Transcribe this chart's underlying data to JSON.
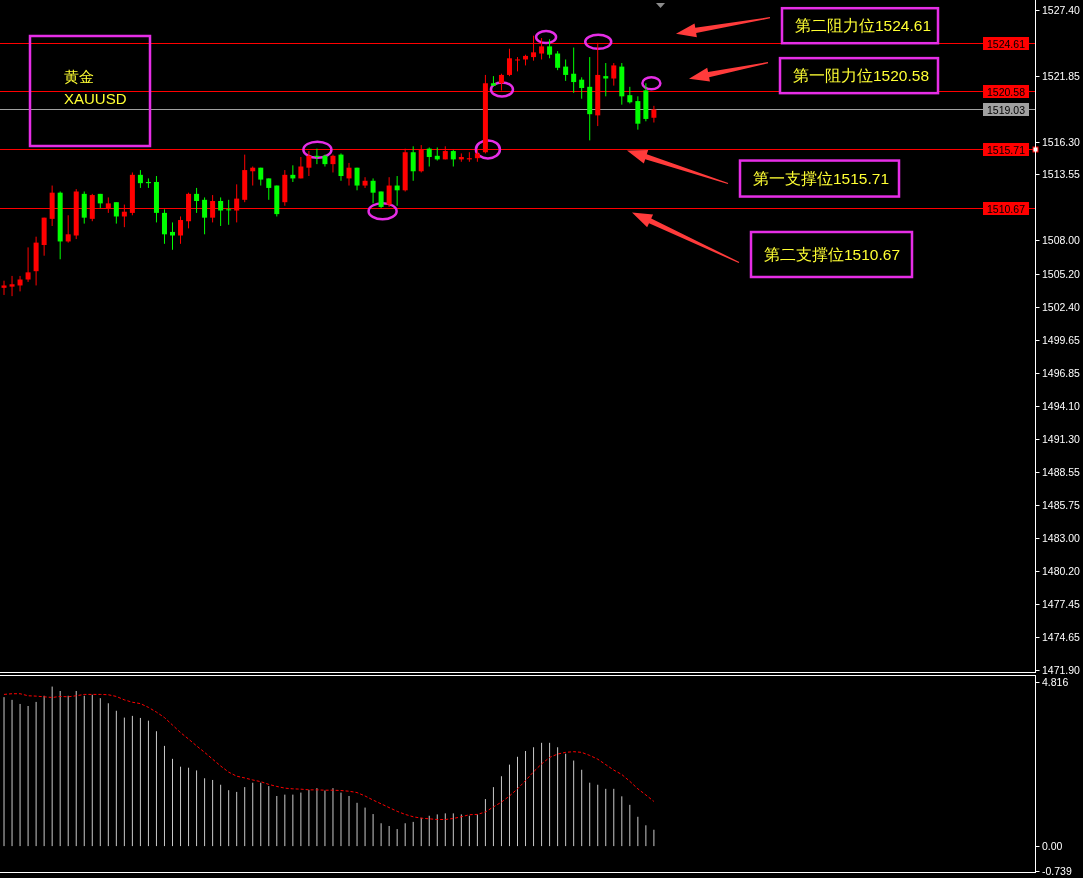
{
  "chart_data": [
    {
      "type": "candlestick",
      "title": "黄金",
      "subtitle": "XAUUSD",
      "categories": [
        null,
        null,
        null,
        null,
        null,
        null,
        null,
        null,
        null,
        null,
        null,
        null,
        null,
        null,
        null,
        null,
        null,
        null,
        null,
        null,
        null,
        null,
        null,
        null,
        null,
        null,
        null,
        null,
        null,
        null,
        null,
        null,
        null,
        null,
        null,
        null,
        null,
        null,
        null,
        null,
        null,
        null,
        null,
        null,
        null,
        null,
        null,
        null,
        null,
        null,
        null,
        null,
        null,
        null,
        null,
        null,
        null,
        null,
        null,
        null,
        null,
        null,
        null,
        null,
        null,
        null,
        null,
        null,
        null,
        null,
        null,
        null,
        null,
        null,
        null,
        null,
        null,
        null,
        null,
        null,
        null,
        null,
        null,
        null,
        null,
        null,
        null,
        null,
        null,
        null,
        null,
        null,
        null,
        null,
        null,
        null,
        null,
        null,
        null,
        null,
        null,
        null,
        null,
        null,
        null,
        null,
        null,
        null,
        null,
        null,
        null,
        null,
        null,
        null,
        null,
        null,
        null,
        null,
        null,
        null,
        null,
        null,
        null,
        null,
        null,
        null,
        null,
        null,
        null
      ],
      "ohlc": [
        [
          1504.0,
          1504.6,
          1503.4,
          1504.2
        ],
        [
          1504.1,
          1505.0,
          1503.3,
          1504.3
        ],
        [
          1504.2,
          1505.0,
          1503.7,
          1504.7
        ],
        [
          1504.7,
          1507.4,
          1504.5,
          1505.3
        ],
        [
          1505.4,
          1508.3,
          1504.2,
          1507.8
        ],
        [
          1507.6,
          1509.9,
          1506.7,
          1509.9
        ],
        [
          1509.8,
          1512.6,
          1509.2,
          1512.0
        ],
        [
          1512.0,
          1512.1,
          1506.4,
          1507.9
        ],
        [
          1507.9,
          1510.1,
          1507.8,
          1508.5
        ],
        [
          1508.4,
          1512.3,
          1508.1,
          1512.1
        ],
        [
          1511.9,
          1512.1,
          1509.4,
          1509.9
        ],
        [
          1509.8,
          1511.9,
          1509.6,
          1511.8
        ],
        [
          1511.9,
          1511.9,
          1510.7,
          1511.1
        ],
        [
          1510.7,
          1511.6,
          1510.3,
          1511.1
        ],
        [
          1511.2,
          1511.2,
          1509.4,
          1510.0
        ],
        [
          1510.0,
          1511.0,
          1509.1,
          1510.4
        ],
        [
          1510.3,
          1513.7,
          1510.1,
          1513.5
        ],
        [
          1513.5,
          1513.9,
          1512.4,
          1512.8
        ],
        [
          1512.9,
          1513.2,
          1512.4,
          1512.8
        ],
        [
          1512.9,
          1513.4,
          1509.5,
          1510.3
        ],
        [
          1510.3,
          1510.6,
          1507.7,
          1508.5
        ],
        [
          1508.7,
          1509.5,
          1507.2,
          1508.4
        ],
        [
          1508.4,
          1510.0,
          1507.7,
          1509.7
        ],
        [
          1509.6,
          1512.0,
          1509.0,
          1511.9
        ],
        [
          1511.9,
          1512.4,
          1510.3,
          1511.3
        ],
        [
          1511.4,
          1511.6,
          1508.5,
          1509.9
        ],
        [
          1509.9,
          1511.8,
          1509.5,
          1511.3
        ],
        [
          1511.3,
          1511.6,
          1509.2,
          1510.5
        ],
        [
          1510.6,
          1511.4,
          1509.3,
          1510.6
        ],
        [
          1510.5,
          1512.7,
          1509.5,
          1511.5
        ],
        [
          1511.4,
          1515.2,
          1511.2,
          1513.9
        ],
        [
          1513.8,
          1514.2,
          1512.6,
          1514.1
        ],
        [
          1514.1,
          1514.1,
          1512.6,
          1513.1
        ],
        [
          1513.2,
          1513.2,
          1511.4,
          1512.4
        ],
        [
          1512.6,
          1512.6,
          1510.0,
          1510.2
        ],
        [
          1511.2,
          1513.9,
          1510.9,
          1513.5
        ],
        [
          1513.5,
          1514.3,
          1512.9,
          1513.2
        ],
        [
          1513.2,
          1515.0,
          1513.2,
          1514.2
        ],
        [
          1514.1,
          1515.5,
          1513.4,
          1515.1
        ],
        [
          1515.1,
          1515.7,
          1514.4,
          1515.0
        ],
        [
          1515.1,
          1515.2,
          1514.2,
          1514.4
        ],
        [
          1514.4,
          1515.2,
          1513.7,
          1515.1
        ],
        [
          1515.2,
          1515.3,
          1513.0,
          1513.4
        ],
        [
          1513.2,
          1514.5,
          1512.6,
          1514.1
        ],
        [
          1514.1,
          1514.1,
          1512.2,
          1512.6
        ],
        [
          1512.6,
          1513.3,
          1512.4,
          1513.0
        ],
        [
          1513.0,
          1513.2,
          1511.1,
          1512.0
        ],
        [
          1512.1,
          1512.1,
          1510.7,
          1510.8
        ],
        [
          1511.0,
          1513.3,
          1510.8,
          1512.6
        ],
        [
          1512.6,
          1513.4,
          1510.9,
          1512.2
        ],
        [
          1512.2,
          1515.7,
          1512.1,
          1515.4
        ],
        [
          1515.4,
          1515.9,
          1513.0,
          1513.8
        ],
        [
          1513.8,
          1516.0,
          1513.7,
          1515.6
        ],
        [
          1515.7,
          1515.8,
          1514.2,
          1515.0
        ],
        [
          1515.1,
          1515.8,
          1514.7,
          1514.8
        ],
        [
          1514.8,
          1515.9,
          1514.8,
          1515.5
        ],
        [
          1515.5,
          1515.6,
          1514.2,
          1514.8
        ],
        [
          1514.8,
          1515.3,
          1514.6,
          1515.0
        ],
        [
          1514.8,
          1515.4,
          1514.6,
          1514.9
        ],
        [
          1514.9,
          1515.6,
          1514.6,
          1515.3
        ],
        [
          1515.4,
          1521.9,
          1515.3,
          1521.2
        ],
        [
          1521.2,
          1521.8,
          1521.0,
          1521.0
        ],
        [
          1521.2,
          1522.0,
          1520.6,
          1521.9
        ],
        [
          1521.9,
          1524.1,
          1521.8,
          1523.3
        ],
        [
          1523.2,
          1523.4,
          1522.2,
          1523.2
        ],
        [
          1523.2,
          1523.6,
          1522.7,
          1523.5
        ],
        [
          1523.4,
          1525.2,
          1523.1,
          1523.8
        ],
        [
          1523.7,
          1525.0,
          1523.2,
          1524.3
        ],
        [
          1524.3,
          1524.9,
          1523.3,
          1523.6
        ],
        [
          1523.7,
          1523.9,
          1522.3,
          1522.5
        ],
        [
          1522.6,
          1523.2,
          1521.4,
          1521.9
        ],
        [
          1522.0,
          1524.2,
          1520.4,
          1521.3
        ],
        [
          1521.5,
          1521.7,
          1519.9,
          1520.8
        ],
        [
          1520.9,
          1523.4,
          1516.4,
          1518.6
        ],
        [
          1518.5,
          1524.6,
          1517.6,
          1521.9
        ],
        [
          1521.8,
          1522.9,
          1520.1,
          1521.6
        ],
        [
          1521.6,
          1522.9,
          1521.0,
          1522.7
        ],
        [
          1522.6,
          1522.9,
          1519.4,
          1520.1
        ],
        [
          1520.2,
          1520.9,
          1519.5,
          1519.6
        ],
        [
          1519.7,
          1520.1,
          1517.3,
          1517.8
        ],
        [
          1520.6,
          1521.2,
          1518.0,
          1518.2
        ],
        [
          1518.3,
          1519.3,
          1517.9,
          1519.0
        ],
        null,
        null,
        null,
        null,
        null,
        null,
        null,
        null,
        null,
        null,
        null,
        null,
        null,
        null,
        null,
        null,
        null,
        null,
        null,
        null,
        null,
        null,
        null,
        null,
        null,
        null,
        null,
        null,
        null,
        null,
        null,
        null,
        null,
        null,
        null,
        null,
        null,
        null,
        null,
        null,
        null,
        null,
        null,
        null,
        null,
        null,
        null
      ],
      "colors": [
        "#ff0000",
        "#ff0000",
        "#ff0000",
        "#ff0000",
        "#ff0000",
        "#ff0000",
        "#ff0000",
        "#00ff00",
        "#ff0000",
        "#ff0000",
        "#00ff00",
        "#ff0000",
        "#00ff00",
        "#ff0000",
        "#00ff00",
        "#ff0000",
        "#ff0000",
        "#00ff00",
        "#00ff00",
        "#00ff00",
        "#00ff00",
        "#00ff00",
        "#ff0000",
        "#ff0000",
        "#00ff00",
        "#00ff00",
        "#ff0000",
        "#00ff00",
        "#00ff00",
        "#ff0000",
        "#ff0000",
        "#ff0000",
        "#00ff00",
        "#00ff00",
        "#00ff00",
        "#ff0000",
        "#00ff00",
        "#ff0000",
        "#ff0000",
        "#00ff00",
        "#00ff00",
        "#ff0000",
        "#00ff00",
        "#ff0000",
        "#00ff00",
        "#ff0000",
        "#00ff00",
        "#00ff00",
        "#ff0000",
        "#00ff00",
        "#ff0000",
        "#00ff00",
        "#ff0000",
        "#00ff00",
        "#00ff00",
        "#ff0000",
        "#00ff00",
        "#ff0000",
        "#ff0000",
        "#ff0000",
        "#ff0000",
        "#00ff00",
        "#ff0000",
        "#ff0000",
        "#ff0000",
        "#ff0000",
        "#ff0000",
        "#ff0000",
        "#00ff00",
        "#00ff00",
        "#00ff00",
        "#00ff00",
        "#00ff00",
        "#00ff00",
        "#ff0000",
        "#00ff00",
        "#ff0000",
        "#00ff00",
        "#00ff00",
        "#00ff00",
        "#00ff00",
        "#ff0000",
        null,
        null,
        null,
        null,
        null,
        null,
        null,
        null,
        null,
        null,
        null,
        null,
        null,
        null,
        null,
        null,
        null,
        null,
        null,
        null,
        null,
        null,
        null,
        null,
        null,
        null,
        null,
        null,
        null,
        null,
        null,
        null,
        null,
        null,
        null,
        null,
        null,
        null,
        null,
        null,
        null,
        null,
        null,
        null,
        null,
        null,
        null
      ],
      "ylim": [
        1471.7,
        1528.2
      ],
      "yticks": [
        {
          "value": 1527.4,
          "label": "1527.40"
        },
        1521.85,
        {
          "value": 1516.3,
          "label": "1516.30"
        },
        1513.55,
        {
          "value": 1508,
          "label": "1508.00"
        },
        {
          "value": 1505.2,
          "label": "1505.20"
        },
        {
          "value": 1502.4,
          "label": "1502.40"
        },
        1499.65,
        1496.85,
        {
          "value": 1494.1,
          "label": "1494.10"
        },
        {
          "value": 1491.3,
          "label": "1491.30"
        },
        1488.55,
        1485.75,
        {
          "value": 1483,
          "label": "1483.00"
        },
        {
          "value": 1480.2,
          "label": "1480.20"
        },
        1477.45,
        1474.65,
        {
          "value": 1471.9,
          "label": "1471.90"
        }
      ],
      "tick_labels": "y",
      "ref_lines": [
        {
          "axis": "y",
          "value": 1524.61,
          "label": "1524.61",
          "color": "#ff0000"
        },
        {
          "axis": "y",
          "value": 1520.58,
          "label": "1520.58",
          "color": "#ff0000"
        },
        {
          "axis": "y",
          "value": 1519.03,
          "label": "1519.03",
          "color": "#a0a0a0"
        },
        {
          "axis": "y",
          "value": 1515.71,
          "label": "1515.71",
          "color": "#ff0000"
        },
        {
          "axis": "y",
          "value": 1510.67,
          "label": "1510.67",
          "color": "#ff0000"
        }
      ],
      "annotations": [
        {
          "text": "第二阻力位1524.61",
          "y": 1524.61
        },
        {
          "text": "第一阻力位1520.58",
          "y": 1520.58
        },
        {
          "text": "第一支撑位1515.71",
          "y": 1515.71
        },
        {
          "text": "第二支撑位1510.67",
          "y": 1510.67
        }
      ]
    },
    {
      "type": "bar",
      "categories": [
        null,
        null,
        null,
        null,
        null,
        null,
        null,
        null,
        null,
        null,
        null,
        null,
        null,
        null,
        null,
        null,
        null,
        null,
        null,
        null,
        null,
        null,
        null,
        null,
        null,
        null,
        null,
        null,
        null,
        null,
        null,
        null,
        null,
        null,
        null,
        null,
        null,
        null,
        null,
        null,
        null,
        null,
        null,
        null,
        null,
        null,
        null,
        null,
        null,
        null,
        null,
        null,
        null,
        null,
        null,
        null,
        null,
        null,
        null,
        null,
        null,
        null,
        null,
        null,
        null,
        null,
        null,
        null,
        null,
        null,
        null,
        null,
        null,
        null,
        null,
        null,
        null,
        null,
        null,
        null,
        null,
        null,
        null,
        null,
        null,
        null,
        null,
        null,
        null,
        null,
        null,
        null,
        null,
        null,
        null,
        null,
        null,
        null,
        null,
        null,
        null,
        null,
        null,
        null,
        null,
        null,
        null,
        null,
        null,
        null,
        null,
        null,
        null,
        null,
        null,
        null,
        null,
        null,
        null,
        null,
        null,
        null,
        null,
        null,
        null,
        null,
        null,
        null,
        null
      ],
      "series": [
        {
          "type": "bar",
          "color": "#c8c8c8",
          "values": [
            4.37,
            4.29,
            4.17,
            4.11,
            4.23,
            4.41,
            4.68,
            4.55,
            4.41,
            4.55,
            4.41,
            4.44,
            4.34,
            4.19,
            3.97,
            3.77,
            3.82,
            3.76,
            3.68,
            3.37,
            2.94,
            2.56,
            2.33,
            2.3,
            2.22,
            1.99,
            1.94,
            1.8,
            1.64,
            1.59,
            1.73,
            1.86,
            1.86,
            1.76,
            1.47,
            1.51,
            1.51,
            1.57,
            1.65,
            1.7,
            1.63,
            1.7,
            1.57,
            1.47,
            1.27,
            1.13,
            0.94,
            0.67,
            0.59,
            0.5,
            0.67,
            0.71,
            0.83,
            0.89,
            0.93,
            0.96,
            0.96,
            0.93,
            0.89,
            0.93,
            1.38,
            1.73,
            2.05,
            2.39,
            2.62,
            2.79,
            2.9,
            3.03,
            3.03,
            2.9,
            2.71,
            2.51,
            2.24,
            1.86,
            1.8,
            1.68,
            1.68,
            1.46,
            1.21,
            0.86,
            0.61,
            0.48,
            null,
            null,
            null,
            null,
            null,
            null,
            null,
            null,
            null,
            null,
            null,
            null,
            null,
            null,
            null,
            null,
            null,
            null,
            null,
            null,
            null,
            null,
            null,
            null,
            null,
            null,
            null,
            null,
            null,
            null,
            null,
            null,
            null,
            null,
            null,
            null,
            null,
            null,
            null,
            null,
            null,
            null,
            null,
            null,
            null,
            null,
            null
          ]
        },
        {
          "type": "line",
          "color": "#ff0000",
          "line_style": "dashed",
          "values": [
            4.45,
            4.47,
            4.47,
            4.41,
            4.4,
            4.38,
            4.36,
            4.39,
            4.38,
            4.41,
            4.45,
            4.45,
            4.45,
            4.44,
            4.39,
            4.29,
            4.22,
            4.18,
            4.07,
            3.93,
            3.77,
            3.55,
            3.33,
            3.14,
            2.94,
            2.75,
            2.55,
            2.35,
            2.17,
            2.05,
            2.0,
            1.94,
            1.89,
            1.81,
            1.75,
            1.7,
            1.68,
            1.67,
            1.65,
            1.65,
            1.64,
            1.64,
            1.63,
            1.61,
            1.57,
            1.47,
            1.35,
            1.24,
            1.13,
            1.02,
            0.93,
            0.86,
            0.82,
            0.8,
            0.78,
            0.78,
            0.81,
            0.86,
            0.92,
            0.93,
            1.0,
            1.15,
            1.29,
            1.47,
            1.68,
            1.92,
            2.18,
            2.41,
            2.6,
            2.7,
            2.75,
            2.77,
            2.75,
            2.66,
            2.55,
            2.39,
            2.23,
            2.1,
            1.9,
            1.68,
            1.5,
            1.31,
            null,
            null,
            null,
            null,
            null,
            null,
            null,
            null,
            null,
            null,
            null,
            null,
            null,
            null,
            null,
            null,
            null,
            null,
            null,
            null,
            null,
            null,
            null,
            null,
            null,
            null,
            null,
            null,
            null,
            null,
            null,
            null,
            null,
            null,
            null,
            null,
            null,
            null,
            null,
            null,
            null,
            null,
            null,
            null,
            null,
            null,
            null
          ]
        }
      ],
      "ylim": [
        -0.76,
        4.99
      ],
      "yticks": [
        4.816,
        {
          "value": 0,
          "label": "0.00"
        },
        -0.739
      ],
      "tick_labels": "y"
    }
  ]
}
